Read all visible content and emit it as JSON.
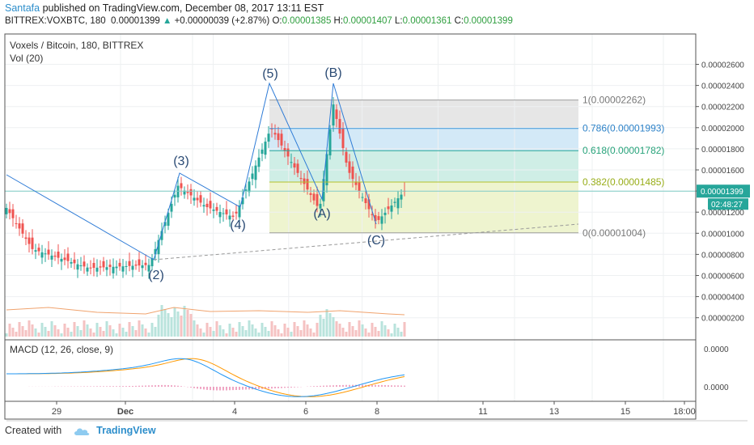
{
  "header": {
    "author": "Santafa",
    "published_text": "published on TradingView.com, December 08, 2017 13:11 EST",
    "ticker": "BITTREX:VOXBTC, 180",
    "last": "0.00001399",
    "change": "+0.00000039 (+2.87%)",
    "o_label": "O:",
    "o_value": "0.00001385",
    "h_label": "H:",
    "h_value": "0.00001407",
    "l_label": "L:",
    "l_value": "0.00001361",
    "c_label": "C:",
    "c_value": "0.00001399"
  },
  "footer": {
    "created_with": "Created with",
    "brand": "TradingView"
  },
  "colors": {
    "up": "#26a69a",
    "down": "#ef5350",
    "wave": "#2e7bd6",
    "macd": "#2196f3",
    "signal": "#ff9800"
  },
  "chart_data": [
    {
      "type": "candlestick",
      "title": "Voxels / Bitcoin, 180, BITTREX",
      "indicator": "Vol (20)",
      "y_axis_ticks": [
        "0.00002600",
        "0.00002400",
        "0.00002200",
        "0.00002000",
        "0.00001800",
        "0.00001600",
        "0.00001400",
        "0.00001200",
        "0.00001000",
        "0.00000800",
        "0.00000600",
        "0.00000400",
        "0.00000200"
      ],
      "x_axis_ticks": [
        "29",
        "Dec",
        "4",
        "6",
        "8",
        "11",
        "13",
        "15",
        "18:00"
      ],
      "last_price_label": "0.00001399",
      "countdown_label": "02:48:27",
      "elliott_wave_labels": [
        {
          "label": "(2)",
          "x": 24.0,
          "y": 7e-06
        },
        {
          "label": "(3)",
          "x": 24.5,
          "y": 1.47e-05
        },
        {
          "label": "(4)",
          "x": 25.45,
          "y": 1.13e-05
        },
        {
          "label": "(5)",
          "x": 25.8,
          "y": 2.262e-05
        },
        {
          "label": "(A)",
          "x": 26.5,
          "y": 1.23e-05
        },
        {
          "label": "(B)",
          "x": 26.9,
          "y": 2.262e-05
        },
        {
          "label": "(C)",
          "x": 27.5,
          "y": 1.004e-05
        }
      ],
      "fibonacci_levels": [
        {
          "ratio": "1",
          "price": "0.00002262",
          "label": "1(0.00002262)"
        },
        {
          "ratio": "0.786",
          "price": "0.00001993",
          "label": "0.786(0.00001993)"
        },
        {
          "ratio": "0.618",
          "price": "0.00001782",
          "label": "0.618(0.00001782)"
        },
        {
          "ratio": "0.382",
          "price": "0.00001485",
          "label": "0.382(0.00001485)"
        },
        {
          "ratio": "0",
          "price": "0.00001004",
          "label": "0(0.00001004)"
        }
      ],
      "trend_lines": [
        {
          "from": {
            "x": 21.8,
            "y": 1.49e-05
          },
          "to": {
            "x": 24.0,
            "y": 7e-06
          }
        },
        {
          "from": {
            "x": 25.8,
            "y": 2.262e-05
          },
          "to": {
            "x": 29.5,
            "y": 1.004e-05
          }
        }
      ]
    },
    {
      "type": "line",
      "title": "MACD (12, 26, close, 9)",
      "y_axis_ticks": [
        "0.0000",
        "0.0000"
      ],
      "series": [
        {
          "name": "MACD"
        },
        {
          "name": "Signal"
        },
        {
          "name": "Histogram"
        }
      ]
    }
  ]
}
